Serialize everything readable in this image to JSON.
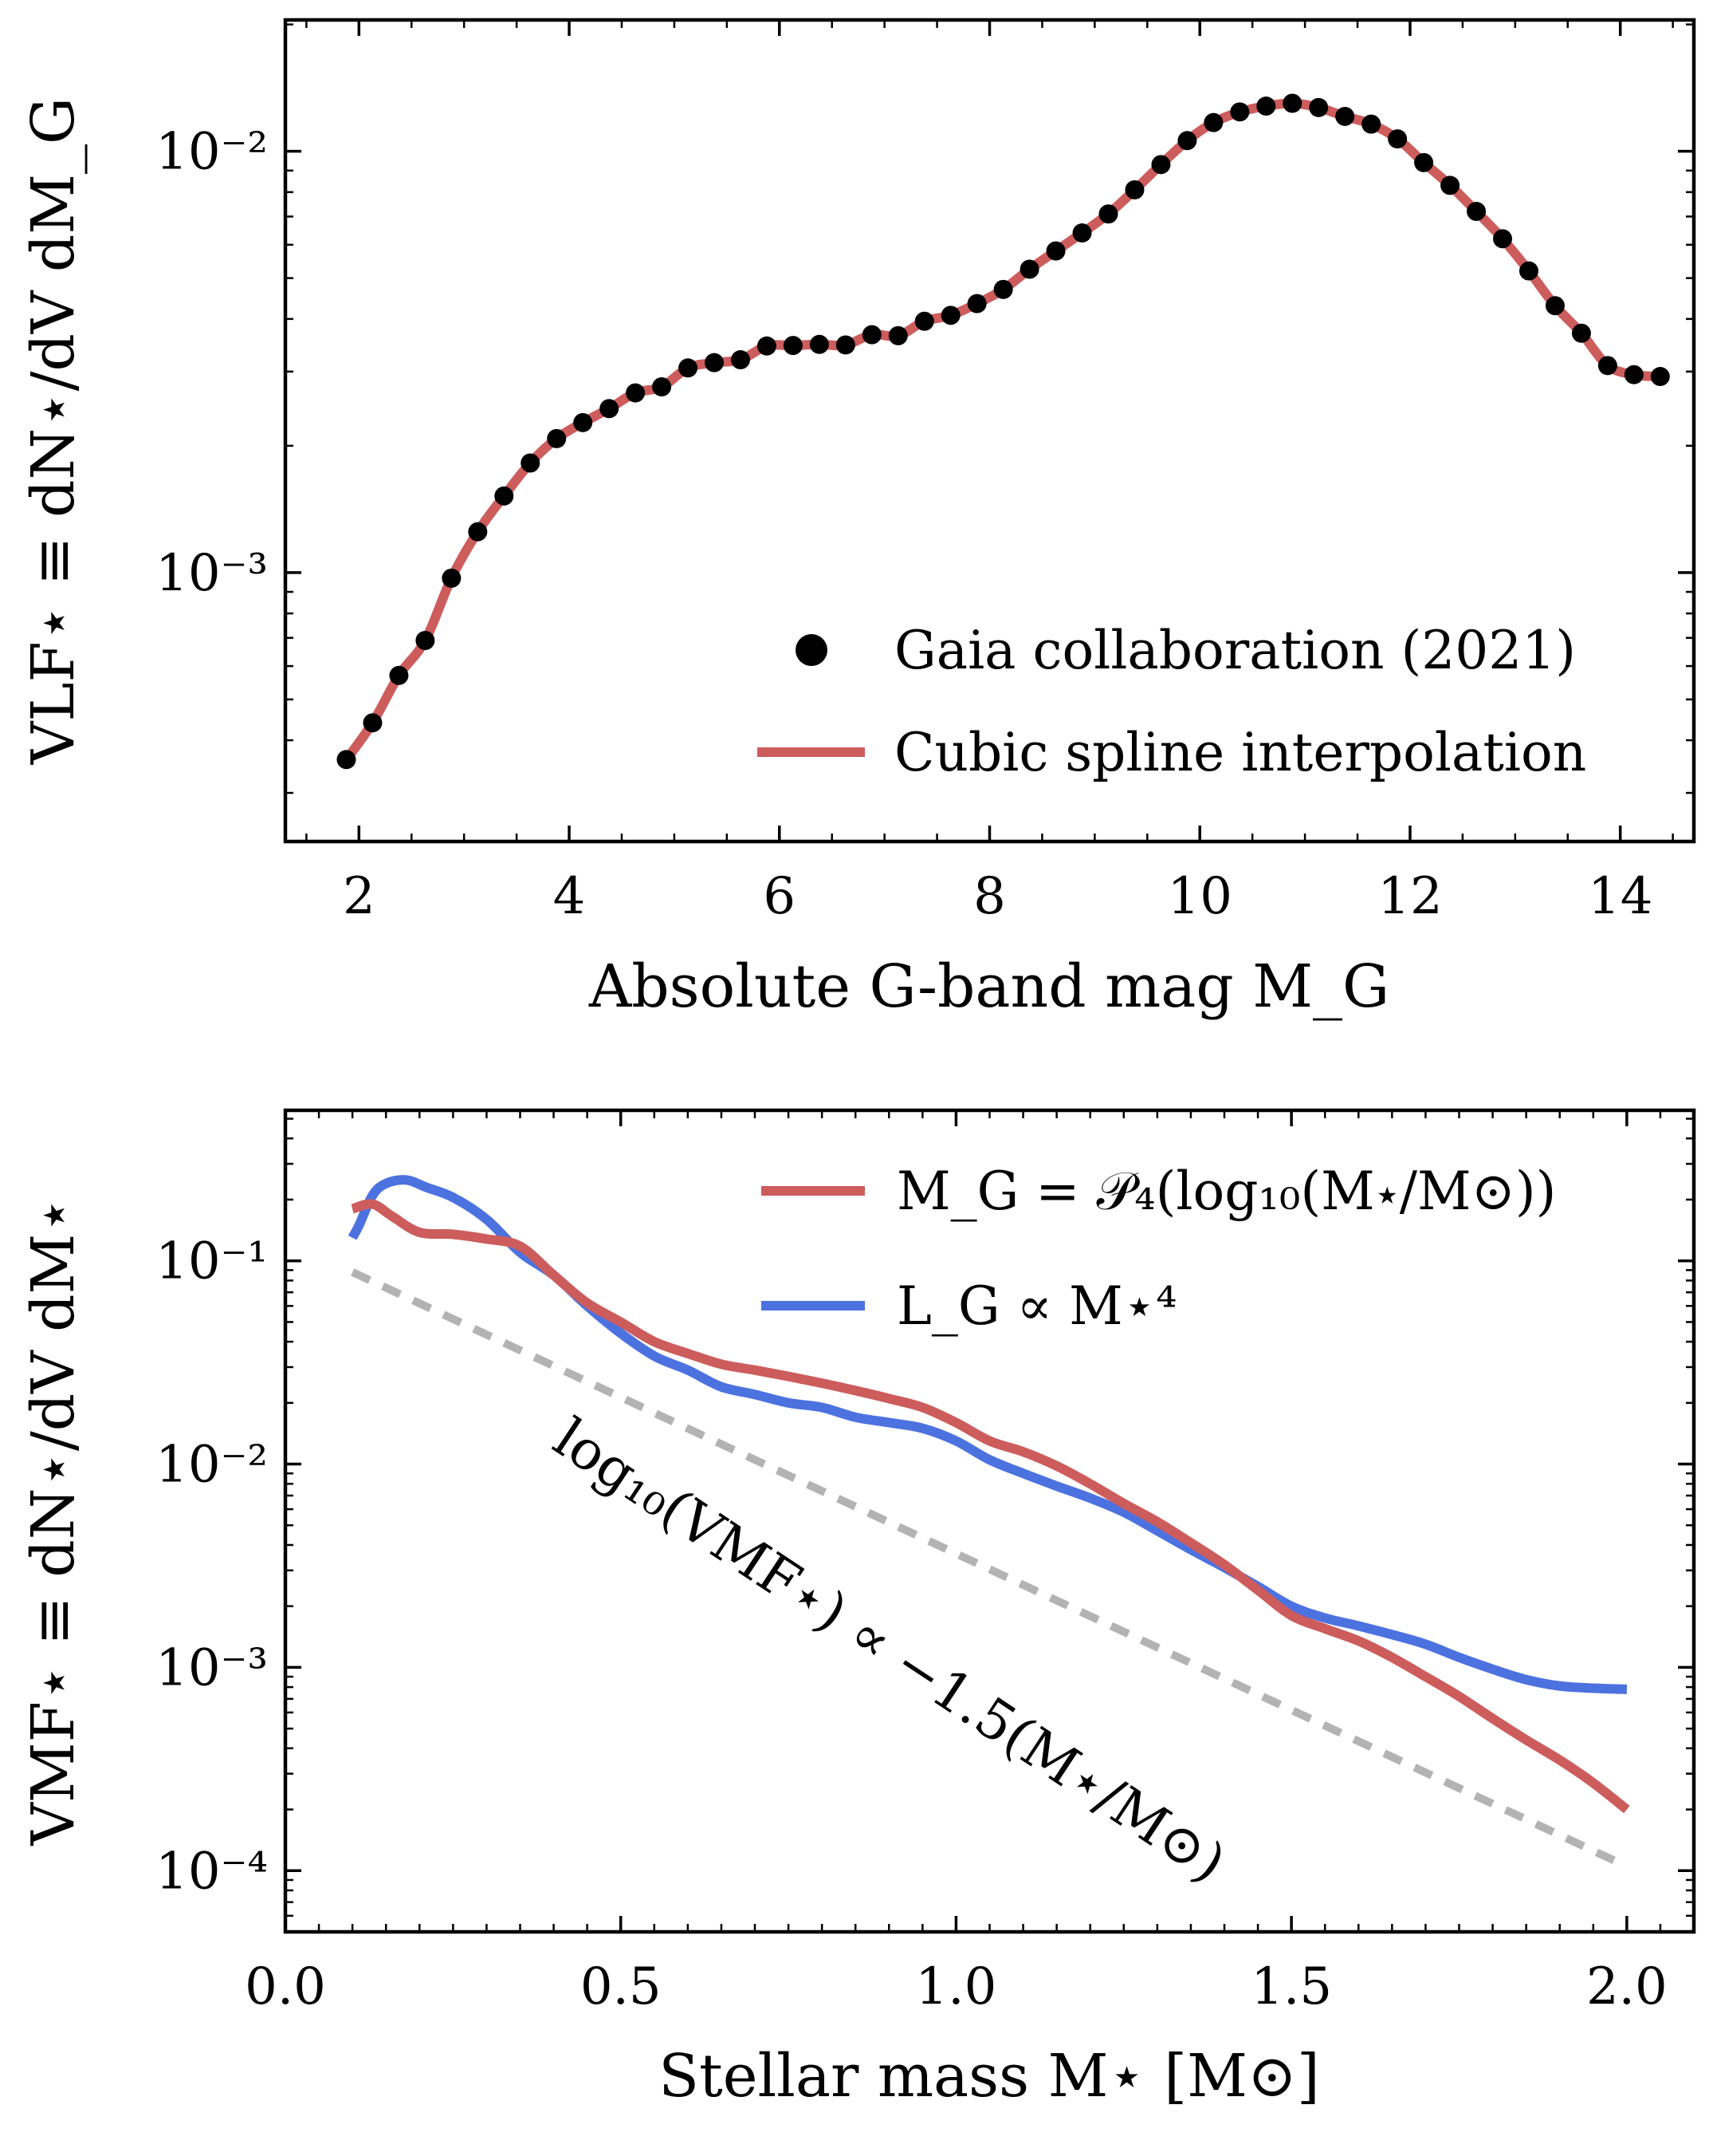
{
  "colors": {
    "spline": "#cd5c5c",
    "poly": "#cd5c5c",
    "m4": "#4c72e0",
    "dashed": "#b3b3b3",
    "points": "#000000"
  },
  "chart_data": [
    {
      "type": "line",
      "xlabel": "Absolute G-band mag M_G",
      "ylabel": "VLF⋆ ≡ dN⋆/dV dM_G",
      "xlim": [
        1.3,
        14.7
      ],
      "ylim": [
        0.00023,
        0.0205
      ],
      "yscale": "log",
      "xticks": [
        2,
        4,
        6,
        8,
        10,
        12,
        14
      ],
      "yticks": [
        {
          "value": 0.001,
          "label": "10⁻³"
        },
        {
          "value": 0.01,
          "label": "10⁻²"
        }
      ],
      "legend_position": "lower-right",
      "series": [
        {
          "name": "Gaia collaboration (2021)",
          "kind": "scatter",
          "x": [
            1.88,
            2.13,
            2.38,
            2.63,
            2.88,
            3.13,
            3.38,
            3.63,
            3.88,
            4.13,
            4.38,
            4.63,
            4.88,
            5.13,
            5.38,
            5.63,
            5.88,
            6.13,
            6.38,
            6.63,
            6.88,
            7.13,
            7.38,
            7.63,
            7.88,
            8.13,
            8.38,
            8.63,
            8.88,
            9.13,
            9.38,
            9.63,
            9.88,
            10.13,
            10.38,
            10.63,
            10.88,
            11.13,
            11.38,
            11.63,
            11.88,
            12.13,
            12.38,
            12.63,
            12.88,
            13.13,
            13.38,
            13.63,
            13.88,
            14.13,
            14.38
          ],
          "y": [
            0.00036,
            0.00044,
            0.00057,
            0.00069,
            0.00097,
            0.00125,
            0.00152,
            0.00182,
            0.00208,
            0.00227,
            0.00245,
            0.00267,
            0.00276,
            0.00306,
            0.00315,
            0.0032,
            0.00345,
            0.00346,
            0.00348,
            0.00347,
            0.00367,
            0.00365,
            0.00395,
            0.00408,
            0.00435,
            0.0047,
            0.00525,
            0.0058,
            0.0064,
            0.0071,
            0.0081,
            0.0093,
            0.0106,
            0.0117,
            0.0124,
            0.0128,
            0.013,
            0.0127,
            0.0121,
            0.0116,
            0.0107,
            0.0094,
            0.0083,
            0.0072,
            0.0062,
            0.0052,
            0.0043,
            0.0037,
            0.0031,
            0.00295,
            0.00292
          ]
        },
        {
          "name": "Cubic spline interpolation",
          "kind": "line",
          "x": [
            1.88,
            2.13,
            2.38,
            2.63,
            2.88,
            3.13,
            3.38,
            3.63,
            3.88,
            4.13,
            4.38,
            4.63,
            4.88,
            5.13,
            5.38,
            5.63,
            5.88,
            6.13,
            6.38,
            6.63,
            6.88,
            7.13,
            7.38,
            7.63,
            7.88,
            8.13,
            8.38,
            8.63,
            8.88,
            9.13,
            9.38,
            9.63,
            9.88,
            10.13,
            10.38,
            10.63,
            10.88,
            11.13,
            11.38,
            11.63,
            11.88,
            12.13,
            12.38,
            12.63,
            12.88,
            13.13,
            13.38,
            13.63,
            13.88,
            14.13,
            14.38
          ],
          "y": [
            0.00036,
            0.00044,
            0.00057,
            0.00069,
            0.00097,
            0.00125,
            0.00152,
            0.00182,
            0.00208,
            0.00227,
            0.00245,
            0.00267,
            0.00276,
            0.00306,
            0.00315,
            0.0032,
            0.00345,
            0.00346,
            0.00348,
            0.00347,
            0.00367,
            0.00365,
            0.00395,
            0.00408,
            0.00435,
            0.0047,
            0.00525,
            0.0058,
            0.0064,
            0.0071,
            0.0081,
            0.0093,
            0.0106,
            0.0117,
            0.0124,
            0.0128,
            0.013,
            0.0127,
            0.0121,
            0.0116,
            0.0107,
            0.0094,
            0.0083,
            0.0072,
            0.0062,
            0.0052,
            0.0043,
            0.0037,
            0.0031,
            0.00295,
            0.00292
          ]
        }
      ]
    },
    {
      "type": "line",
      "xlabel": "Stellar mass M⋆ [M⊙]",
      "ylabel": "VMF⋆ ≡ dN⋆/dV dM⋆",
      "xlim": [
        0.0,
        2.1
      ],
      "ylim": [
        5e-05,
        0.55
      ],
      "yscale": "log",
      "xticks": [
        {
          "value": 0.0,
          "label": "0.0"
        },
        {
          "value": 0.5,
          "label": "0.5"
        },
        {
          "value": 1.0,
          "label": "1.0"
        },
        {
          "value": 1.5,
          "label": "1.5"
        },
        {
          "value": 2.0,
          "label": "2.0"
        }
      ],
      "yticks": [
        {
          "value": 0.0001,
          "label": "10⁻⁴"
        },
        {
          "value": 0.001,
          "label": "10⁻³"
        },
        {
          "value": 0.01,
          "label": "10⁻²"
        },
        {
          "value": 0.1,
          "label": "10⁻¹"
        }
      ],
      "legend_position": "top-right",
      "annotation": {
        "text": "log₁₀(VMF⋆) ∝ −1.5(M⋆/M⊙)",
        "x": 0.4,
        "y": 0.012
      },
      "series": [
        {
          "name": "M_G = 𝒫₄(log₁₀(M⋆/M⊙))",
          "x": [
            0.1,
            0.13,
            0.16,
            0.2,
            0.25,
            0.3,
            0.35,
            0.4,
            0.45,
            0.5,
            0.55,
            0.6,
            0.65,
            0.7,
            0.75,
            0.8,
            0.85,
            0.9,
            0.95,
            1.0,
            1.05,
            1.1,
            1.15,
            1.2,
            1.25,
            1.3,
            1.35,
            1.4,
            1.45,
            1.5,
            1.55,
            1.6,
            1.65,
            1.7,
            1.75,
            1.8,
            1.85,
            1.9,
            1.95,
            2.0
          ],
          "y": [
            0.18,
            0.19,
            0.165,
            0.138,
            0.135,
            0.128,
            0.118,
            0.085,
            0.062,
            0.05,
            0.04,
            0.035,
            0.031,
            0.029,
            0.027,
            0.025,
            0.023,
            0.021,
            0.019,
            0.016,
            0.013,
            0.0115,
            0.0098,
            0.008,
            0.0064,
            0.0052,
            0.0041,
            0.0032,
            0.0024,
            0.0018,
            0.00155,
            0.00135,
            0.00112,
            0.0009,
            0.00072,
            0.00056,
            0.00044,
            0.00035,
            0.00027,
            0.0002
          ]
        },
        {
          "name": "L_G ∝ M⋆⁴",
          "x": [
            0.1,
            0.11,
            0.13,
            0.15,
            0.18,
            0.21,
            0.25,
            0.3,
            0.35,
            0.4,
            0.45,
            0.5,
            0.55,
            0.6,
            0.65,
            0.7,
            0.75,
            0.8,
            0.85,
            0.9,
            0.95,
            1.0,
            1.05,
            1.1,
            1.15,
            1.2,
            1.25,
            1.3,
            1.35,
            1.4,
            1.45,
            1.5,
            1.55,
            1.6,
            1.65,
            1.7,
            1.75,
            1.8,
            1.85,
            1.9,
            1.95,
            2.0
          ],
          "y": [
            0.13,
            0.15,
            0.21,
            0.24,
            0.25,
            0.23,
            0.205,
            0.16,
            0.11,
            0.085,
            0.06,
            0.044,
            0.034,
            0.029,
            0.024,
            0.022,
            0.02,
            0.019,
            0.017,
            0.016,
            0.015,
            0.013,
            0.0105,
            0.009,
            0.0078,
            0.0068,
            0.0058,
            0.0047,
            0.0038,
            0.0031,
            0.0025,
            0.002,
            0.00175,
            0.0016,
            0.00145,
            0.0013,
            0.00112,
            0.00098,
            0.00087,
            0.00081,
            0.00079,
            0.00078
          ]
        },
        {
          "name": "",
          "style": "dashed",
          "x": [
            0.1,
            2.0
          ],
          "y": [
            0.088,
            0.000105
          ]
        }
      ]
    }
  ]
}
